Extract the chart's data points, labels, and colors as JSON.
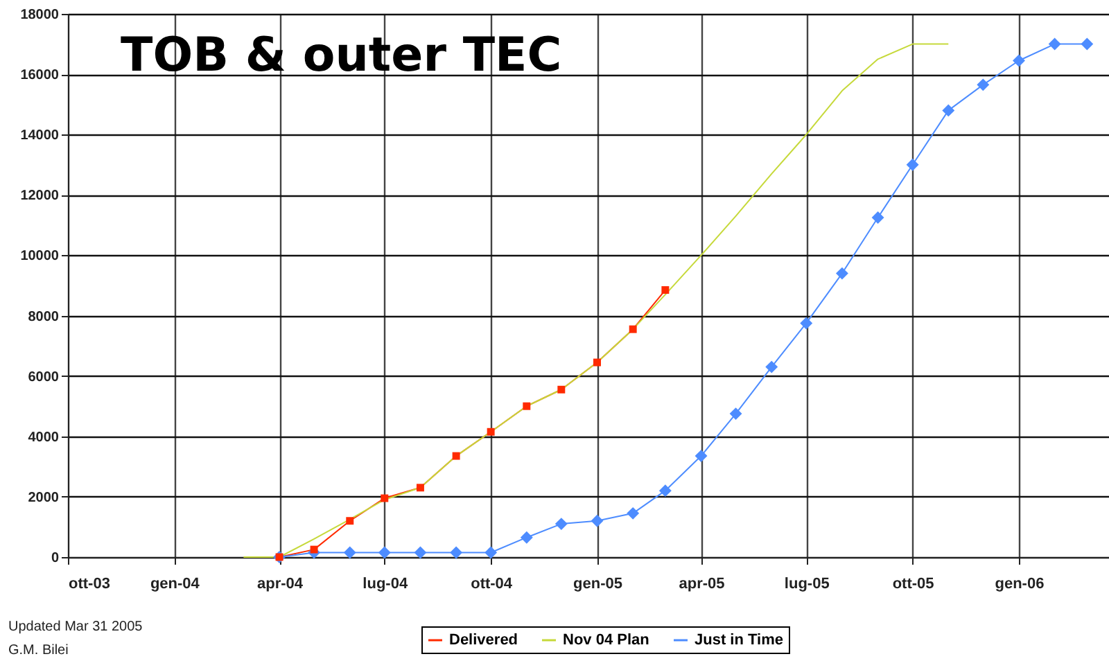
{
  "chart_data": {
    "type": "line",
    "title": "TOB & outer TEC",
    "xlim": [
      "2003-10",
      "2006-03-20"
    ],
    "xticks": [
      {
        "value": "2003-10",
        "label": "ott-03"
      },
      {
        "value": "2004-01",
        "label": "gen-04"
      },
      {
        "value": "2004-04",
        "label": "apr-04"
      },
      {
        "value": "2004-07",
        "label": "lug-04"
      },
      {
        "value": "2004-10",
        "label": "ott-04"
      },
      {
        "value": "2005-01",
        "label": "gen-05"
      },
      {
        "value": "2005-04",
        "label": "apr-05"
      },
      {
        "value": "2005-07",
        "label": "lug-05"
      },
      {
        "value": "2005-10",
        "label": "ott-05"
      },
      {
        "value": "2006-01",
        "label": "gen-06"
      }
    ],
    "ylim": [
      0,
      18000
    ],
    "yticks": [
      0,
      2000,
      4000,
      6000,
      8000,
      10000,
      12000,
      14000,
      16000,
      18000
    ],
    "grid": true,
    "legend": "bottom",
    "annotations": [
      "Updated Mar 31  2005",
      "G.M. Bilei"
    ],
    "series": [
      {
        "name": "Delivered",
        "color": "#ff2a00",
        "marker": "square",
        "x": [
          "2004-04",
          "2004-05",
          "2004-06",
          "2004-07",
          "2004-08",
          "2004-09",
          "2004-10",
          "2004-11",
          "2004-12",
          "2005-01",
          "2005-02",
          "2005-03"
        ],
        "values": [
          0,
          250,
          1200,
          1950,
          2300,
          3350,
          4150,
          5000,
          5550,
          6450,
          7550,
          8850
        ]
      },
      {
        "name": "Nov 04 Plan",
        "color": "#c6d93a",
        "marker": "none",
        "x": [
          "2004-03",
          "2004-04",
          "2004-05",
          "2004-06",
          "2004-07",
          "2004-08",
          "2004-09",
          "2004-10",
          "2004-11",
          "2004-12",
          "2005-01",
          "2005-02",
          "2005-03",
          "2005-04",
          "2005-05",
          "2005-06",
          "2005-07",
          "2005-08",
          "2005-09",
          "2005-10",
          "2005-11"
        ],
        "values": [
          0,
          0,
          600,
          1250,
          1900,
          2300,
          3350,
          4150,
          5000,
          5550,
          6450,
          7550,
          8700,
          10000,
          11300,
          12700,
          14000,
          15450,
          16500,
          17000,
          17000
        ]
      },
      {
        "name": "Just in Time",
        "color": "#4d8cff",
        "marker": "diamond",
        "x": [
          "2004-04",
          "2004-05",
          "2004-06",
          "2004-07",
          "2004-08",
          "2004-09",
          "2004-10",
          "2004-11",
          "2004-12",
          "2005-01",
          "2005-02",
          "2005-03",
          "2005-04",
          "2005-05",
          "2005-06",
          "2005-07",
          "2005-08",
          "2005-09",
          "2005-10",
          "2005-11",
          "2005-12",
          "2006-01",
          "2006-02",
          "2006-03"
        ],
        "values": [
          0,
          150,
          150,
          150,
          150,
          150,
          150,
          650,
          1100,
          1200,
          1450,
          2200,
          3350,
          4750,
          6300,
          7750,
          9400,
          11250,
          13000,
          14800,
          15650,
          16450,
          17000,
          17000
        ]
      }
    ]
  }
}
